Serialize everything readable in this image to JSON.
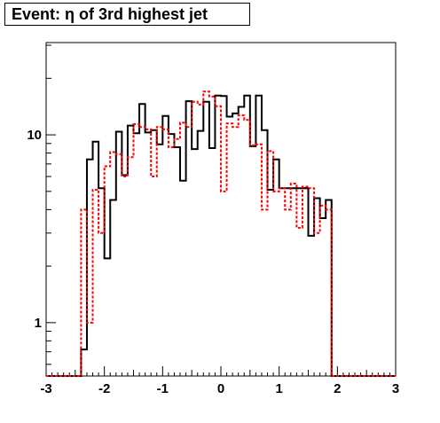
{
  "chart_data": {
    "type": "step-histogram",
    "title": "Event: η of 3rd highest jet",
    "xlabel": "",
    "ylabel": "",
    "xlim": [
      -3,
      3
    ],
    "ylim": [
      0.52,
      31
    ],
    "yscale": "log",
    "grid": false,
    "bin_width": 0.1,
    "x_ticks": [
      {
        "value": -3,
        "label": "-3"
      },
      {
        "value": -2,
        "label": "-2"
      },
      {
        "value": -1,
        "label": "-1"
      },
      {
        "value": 0,
        "label": "0"
      },
      {
        "value": 1,
        "label": "1"
      },
      {
        "value": 2,
        "label": "2"
      },
      {
        "value": 3,
        "label": "3"
      }
    ],
    "y_ticks": [
      {
        "value": 1,
        "label": "1"
      },
      {
        "value": 10,
        "label": "10"
      }
    ],
    "series": [
      {
        "color": "#000000",
        "style": "solid",
        "x_start": -3.0,
        "values": [
          0.5,
          0.5,
          0.5,
          0.5,
          0.5,
          0.5,
          0.72,
          7.4,
          9.2,
          5.2,
          2.2,
          4.5,
          10.4,
          6.1,
          11.2,
          10.2,
          14.6,
          10.3,
          10.6,
          8.9,
          12.6,
          10.1,
          8.6,
          5.7,
          15.1,
          8.4,
          10.5,
          15.0,
          8.5,
          16.2,
          16.1,
          12.5,
          13.0,
          14.1,
          16.2,
          8.7,
          16.2,
          10.6,
          5.1,
          7.4,
          5.2,
          5.2,
          5.2,
          5.2,
          5.2,
          2.9,
          4.6,
          3.6,
          4.5,
          0.5,
          0.5,
          0.5,
          0.5,
          0.5,
          0.5,
          0.5,
          0.5,
          0.5,
          0.5,
          0.5
        ]
      },
      {
        "color": "#ff0000",
        "style": "dotted",
        "x_start": -3.0,
        "values": [
          0.5,
          0.5,
          0.5,
          0.5,
          0.5,
          0.5,
          4.0,
          1.0,
          5.1,
          3.0,
          6.8,
          8.1,
          7.9,
          6.0,
          7.6,
          11.4,
          11.0,
          10.7,
          6.0,
          11.0,
          10.7,
          8.6,
          9.5,
          11.6,
          11.0,
          15.0,
          14.5,
          17.0,
          16.0,
          14.2,
          5.0,
          11.5,
          11.0,
          12.7,
          12.0,
          8.8,
          8.9,
          4.0,
          8.2,
          5.0,
          5.2,
          4.0,
          5.5,
          3.2,
          5.3,
          5.2,
          3.0,
          4.2,
          4.0,
          0.5,
          0.5,
          0.5,
          0.5,
          0.5,
          0.5,
          0.5,
          0.5,
          0.5,
          0.5,
          0.5
        ]
      }
    ]
  }
}
